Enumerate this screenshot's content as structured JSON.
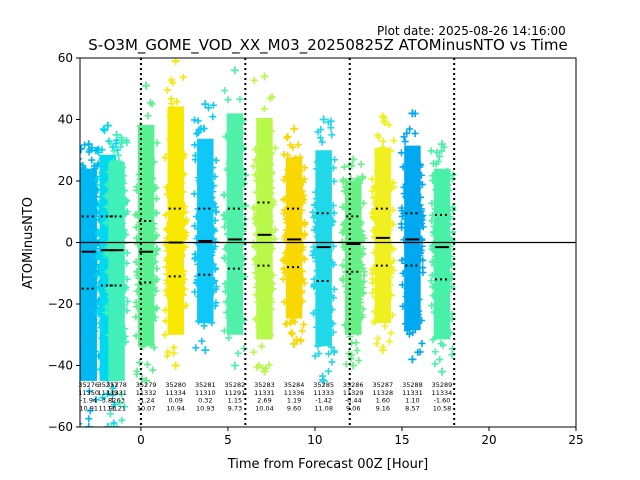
{
  "chart_data": {
    "type": "scatter",
    "title": "S-O3M_GOME_VOD_XX_M03_20250825Z ATOMinusNTO vs Time",
    "plot_date": "Plot date: 2025-08-26 14:16:00",
    "xlabel": "Time from Forecast 00Z [Hour]",
    "ylabel": "ATOMinusNTO",
    "xlim": [
      -3.5,
      25
    ],
    "ylim": [
      -60,
      60
    ],
    "xticks": [
      0,
      5,
      10,
      15,
      20,
      25
    ],
    "yticks": [
      -60,
      -40,
      -20,
      0,
      20,
      40,
      60
    ],
    "xtick_labels": [
      "0",
      "5",
      "10",
      "15",
      "20",
      "25"
    ],
    "ytick_labels": [
      "−60",
      "−40",
      "−20",
      "0",
      "20",
      "40",
      "60"
    ],
    "marker": "+",
    "zero_line": 0,
    "vlines": [
      0,
      6,
      12,
      18
    ],
    "orbits": [
      {
        "x": -3.0,
        "orbit": "35276",
        "count": "11350",
        "mean": "-1.94",
        "std": "10.91",
        "color": "#00b8f0",
        "ymin": -60,
        "ymax": 32,
        "med": -3.0,
        "up": 8.5,
        "lo": -15
      },
      {
        "x": -1.9,
        "orbit": "35277",
        "count": "11339",
        "mean": "-3.82",
        "std": "11.91",
        "color": "#00d8f0",
        "ymin": -60,
        "ymax": 38,
        "med": -2.5,
        "up": 8.5,
        "lo": -14
      },
      {
        "x": -1.4,
        "orbit": "35278",
        "count": "11331",
        "mean": "-1.63",
        "std": "11.21",
        "color": "#40f0b8",
        "ymin": -60,
        "ymax": 35,
        "med": -2.5,
        "up": 8.5,
        "lo": -14
      },
      {
        "x": 0.3,
        "orbit": "35279",
        "count": "11332",
        "mean": "-1.24",
        "std": "10.07",
        "color": "#58f090",
        "ymin": -45,
        "ymax": 51,
        "med": -3.0,
        "up": 7,
        "lo": -13
      },
      {
        "x": 2.0,
        "orbit": "35280",
        "count": "11334",
        "mean": "0.09",
        "std": "10.94",
        "color": "#f8e800",
        "ymin": -40,
        "ymax": 59,
        "med": 0,
        "up": 11,
        "lo": -11
      },
      {
        "x": 3.7,
        "orbit": "35281",
        "count": "11310",
        "mean": "0.32",
        "std": "10.93",
        "color": "#10c8f8",
        "ymin": -35,
        "ymax": 45,
        "med": 0.5,
        "up": 11,
        "lo": -10.5
      },
      {
        "x": 5.4,
        "orbit": "35282",
        "count": "11291",
        "mean": "1.15",
        "std": "9.73",
        "color": "#50f0a8",
        "ymin": -40,
        "ymax": 56,
        "med": 1,
        "up": 11,
        "lo": -8.5
      },
      {
        "x": 7.1,
        "orbit": "35283",
        "count": "11331",
        "mean": "2.69",
        "std": "10.04",
        "color": "#b8f848",
        "ymin": -42,
        "ymax": 54,
        "med": 2.5,
        "up": 13,
        "lo": -7.5
      },
      {
        "x": 8.8,
        "orbit": "35284",
        "count": "11336",
        "mean": "1.19",
        "std": "9.60",
        "color": "#f8d800",
        "ymin": -33,
        "ymax": 37,
        "med": 1,
        "up": 11,
        "lo": -8
      },
      {
        "x": 10.5,
        "orbit": "35285",
        "count": "11333",
        "mean": "-1.42",
        "std": "11.08",
        "color": "#20d8e8",
        "ymin": -45,
        "ymax": 40,
        "med": -1.5,
        "up": 9.5,
        "lo": -12.5
      },
      {
        "x": 12.2,
        "orbit": "35286",
        "count": "11329",
        "mean": "-0.44",
        "std": "9.06",
        "color": "#68f088",
        "ymin": -40,
        "ymax": 27,
        "med": -0.5,
        "up": 8.5,
        "lo": -9.5
      },
      {
        "x": 13.9,
        "orbit": "35287",
        "count": "11328",
        "mean": "1.60",
        "std": "9.16",
        "color": "#f0f020",
        "ymin": -35,
        "ymax": 41,
        "med": 1.5,
        "up": 11,
        "lo": -7.5
      },
      {
        "x": 15.6,
        "orbit": "35288",
        "count": "11331",
        "mean": "1.10",
        "std": "8.57",
        "color": "#00a8f0",
        "ymin": -38,
        "ymax": 42,
        "med": 1,
        "up": 9.5,
        "lo": -7.5
      },
      {
        "x": 17.3,
        "orbit": "35289",
        "count": "11334",
        "mean": "-1.60",
        "std": "10.58",
        "color": "#48f0a8",
        "ymin": -42,
        "ymax": 32,
        "med": -1.5,
        "up": 9,
        "lo": -12
      }
    ]
  }
}
